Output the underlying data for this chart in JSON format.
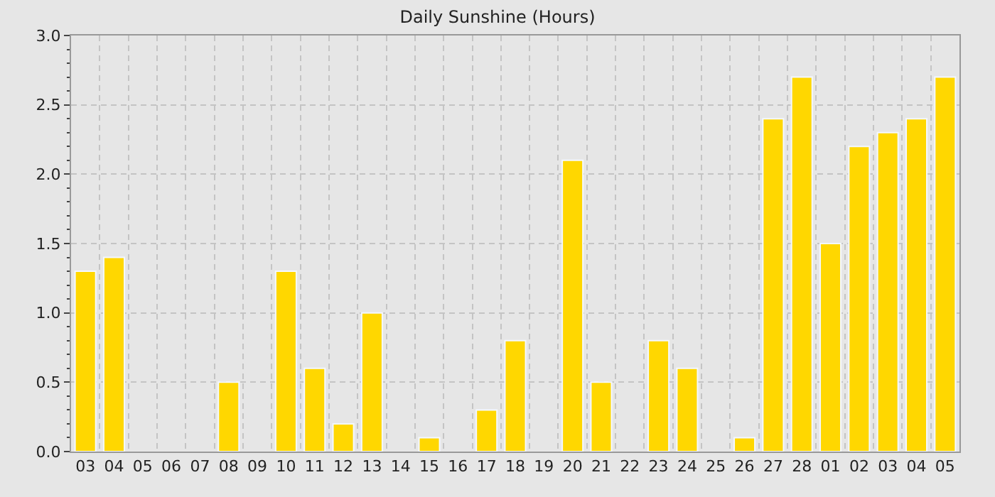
{
  "chart_data": {
    "type": "bar",
    "title": "Daily Sunshine (Hours)",
    "categories": [
      "03",
      "04",
      "05",
      "06",
      "07",
      "08",
      "09",
      "10",
      "11",
      "12",
      "13",
      "14",
      "15",
      "16",
      "17",
      "18",
      "19",
      "20",
      "21",
      "22",
      "23",
      "24",
      "25",
      "26",
      "27",
      "28",
      "01",
      "02",
      "03",
      "04",
      "05"
    ],
    "values": [
      1.3,
      1.4,
      0,
      0,
      0,
      0.5,
      0,
      1.3,
      0.6,
      0.2,
      1.0,
      0,
      0.1,
      0,
      0.3,
      0.8,
      0,
      2.1,
      0.5,
      0,
      0.8,
      0.6,
      0,
      0.1,
      2.4,
      2.7,
      1.5,
      2.2,
      2.3,
      2.4,
      2.7
    ],
    "color": "#ffd700",
    "ylim": [
      0,
      3
    ],
    "yticks": [
      {
        "value": 0,
        "label": "0.0"
      },
      {
        "value": 0.1,
        "label": null
      },
      {
        "value": 0.2,
        "label": null
      },
      {
        "value": 0.3,
        "label": null
      },
      {
        "value": 0.4,
        "label": null
      },
      {
        "value": 0.5,
        "label": "0.5"
      },
      {
        "value": 0.6,
        "label": null
      },
      {
        "value": 0.7,
        "label": null
      },
      {
        "value": 0.8,
        "label": null
      },
      {
        "value": 0.9,
        "label": null
      },
      {
        "value": 1,
        "label": "1.0"
      },
      {
        "value": 1.1,
        "label": null
      },
      {
        "value": 1.2,
        "label": null
      },
      {
        "value": 1.3,
        "label": null
      },
      {
        "value": 1.4,
        "label": null
      },
      {
        "value": 1.5,
        "label": "1.5"
      },
      {
        "value": 1.6,
        "label": null
      },
      {
        "value": 1.7,
        "label": null
      },
      {
        "value": 1.8,
        "label": null
      },
      {
        "value": 1.9,
        "label": null
      },
      {
        "value": 2,
        "label": "2.0"
      },
      {
        "value": 2.1,
        "label": null
      },
      {
        "value": 2.2,
        "label": null
      },
      {
        "value": 2.3,
        "label": null
      },
      {
        "value": 2.4,
        "label": null
      },
      {
        "value": 2.5,
        "label": "2.5"
      },
      {
        "value": 2.6,
        "label": null
      },
      {
        "value": 2.7,
        "label": null
      },
      {
        "value": 2.8,
        "label": null
      },
      {
        "value": 2.9,
        "label": null
      },
      {
        "value": 3,
        "label": "3.0"
      }
    ],
    "grid": true
  }
}
